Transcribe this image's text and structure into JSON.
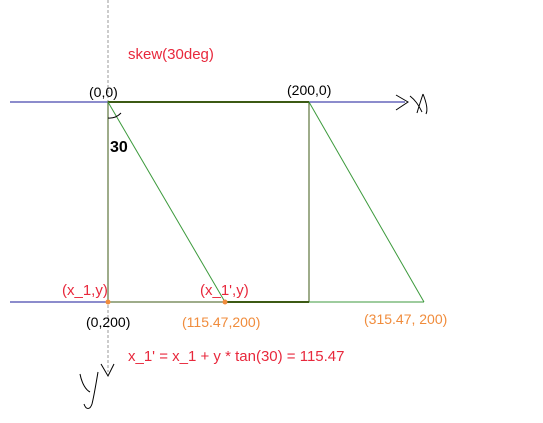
{
  "title": "skew(30deg)",
  "colors": {
    "axis": "#1a1a9a",
    "guide": "#9a9a9a",
    "green": "#3c9a3c",
    "dark_green": "#3c5a14",
    "red": "#e8283c",
    "orange": "#f08c3c",
    "black": "#000000"
  },
  "labels": {
    "origin": "(0,0)",
    "top_right": "(200,0)",
    "bottom_left": "(0,200)",
    "skewed_point": "(115.47,200)",
    "skewed_corner": "(315.47, 200)",
    "angle": "30",
    "point_x1": "(x_1,y)",
    "point_x1_prime": "(x_1',y)",
    "formula": "x_1' = x_1 + y * tan(30) = 115.47",
    "x_axis_glyph": "x",
    "y_axis_glyph": "y"
  },
  "icons": {
    "x_axis_arrow": "handwritten-arrow-icon",
    "y_axis_arrow": "handwritten-arrow-icon",
    "point_marker": "dot-icon"
  }
}
